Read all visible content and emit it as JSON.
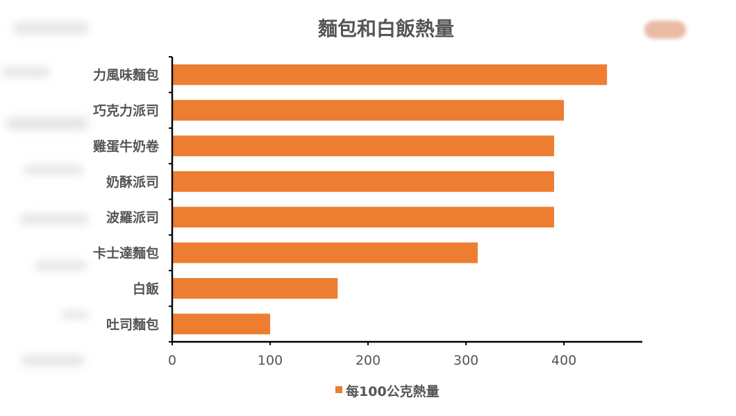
{
  "chart_data": {
    "type": "bar",
    "orientation": "horizontal",
    "title": "麵包和白飯熱量",
    "categories": [
      "力風味麵包",
      "巧克力派司",
      "雞蛋牛奶卷",
      "奶酥派司",
      "波羅派司",
      "卡士達麵包",
      "白飯",
      "吐司麵包"
    ],
    "series": [
      {
        "name": "每100公克熱量",
        "values": [
          444,
          400,
          390,
          390,
          390,
          312,
          169,
          100
        ],
        "color": "#ED7D31"
      }
    ],
    "xlim": [
      0,
      480
    ],
    "x_ticks": [
      0,
      100,
      200,
      300,
      400
    ],
    "x_tick_labels": [
      "0",
      "100",
      "200",
      "300",
      "400"
    ],
    "xlabel": "",
    "ylabel": "",
    "grid": false,
    "legend_position": "bottom"
  }
}
